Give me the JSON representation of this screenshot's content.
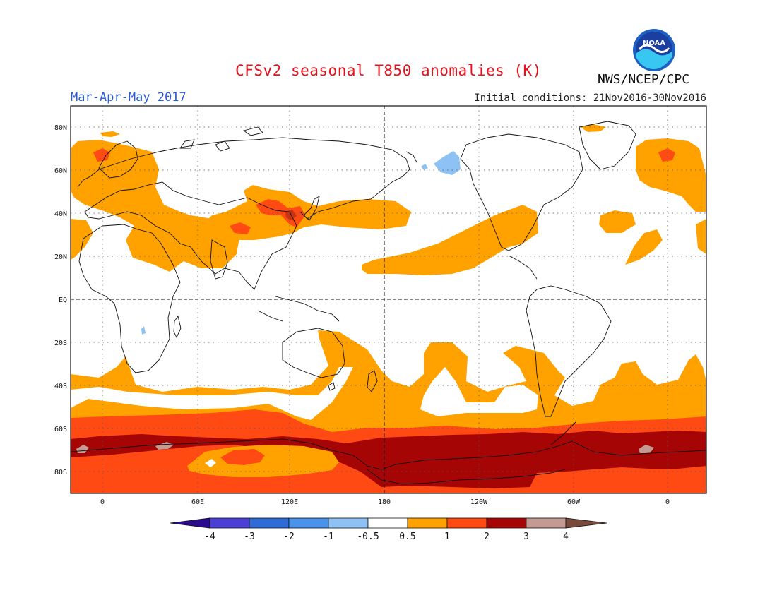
{
  "header": {
    "title": "CFSv2 seasonal T850 anomalies (K)",
    "season": "Mar-Apr-May 2017",
    "initial_conditions": "Initial conditions: 21Nov2016-30Nov2016",
    "agency": "NWS/NCEP/CPC",
    "logo_icon": "noaa-logo-icon"
  },
  "map": {
    "projection": "cylindrical-equidistant",
    "lon_range": [
      -20,
      380
    ],
    "lat_range": [
      -90,
      90
    ],
    "lat_labels": [
      "80N",
      "60N",
      "40N",
      "20N",
      "EQ",
      "20S",
      "40S",
      "60S",
      "80S"
    ],
    "lat_values": [
      80,
      60,
      40,
      20,
      0,
      -20,
      -40,
      -60,
      -80
    ],
    "lon_labels": [
      "0",
      "60E",
      "120E",
      "180",
      "120W",
      "60W",
      "0"
    ],
    "lon_values": [
      0,
      60,
      120,
      180,
      240,
      300,
      360
    ],
    "grid": "dotted",
    "reference_lines": [
      "equator-dashed",
      "dateline-dashed"
    ]
  },
  "colorbar": {
    "ticks": [
      "-4",
      "-3",
      "-2",
      "-1",
      "-0.5",
      "0.5",
      "1",
      "2",
      "3",
      "4"
    ],
    "colors": [
      "#2a0a8f",
      "#4b3fd4",
      "#2f6ad6",
      "#4b93ea",
      "#8ec2f5",
      "#ffffff",
      "#ffa200",
      "#ff4a14",
      "#a50505",
      "#c49a92",
      "#7a4a3a"
    ]
  }
}
